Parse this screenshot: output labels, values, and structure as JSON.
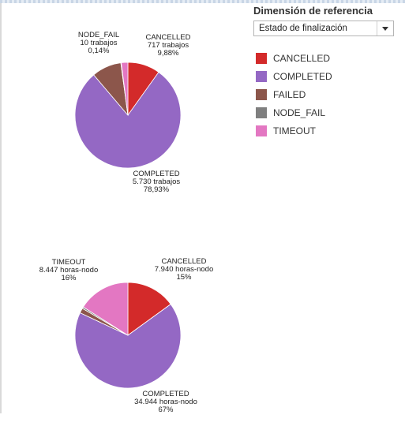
{
  "panel": {
    "title": "Dimensión de referencia",
    "select_value": "Estado de finalización"
  },
  "legend": [
    {
      "label": "CANCELLED",
      "color": "#d32a2a"
    },
    {
      "label": "COMPLETED",
      "color": "#9468c4"
    },
    {
      "label": "FAILED",
      "color": "#8c564b"
    },
    {
      "label": "NODE_FAIL",
      "color": "#7f7f7f"
    },
    {
      "label": "TIMEOUT",
      "color": "#e377c2"
    }
  ],
  "chart_data": [
    {
      "type": "pie",
      "slices": [
        {
          "name": "CANCELLED",
          "percent": 9.88,
          "color": "#d32a2a"
        },
        {
          "name": "COMPLETED",
          "percent": 78.93,
          "color": "#9468c4"
        },
        {
          "name": "FAILED",
          "percent": 9.05,
          "color": "#8c564b"
        },
        {
          "name": "NODE_FAIL",
          "percent": 0.14,
          "color": "#7f7f7f"
        },
        {
          "name": "TIMEOUT",
          "percent": 2.0,
          "color": "#e377c2"
        }
      ],
      "labels": [
        {
          "name": "NODE_FAIL",
          "value": "10 trabajos",
          "pct": "0,14%"
        },
        {
          "name": "CANCELLED",
          "value": "717 trabajos",
          "pct": "9,88%"
        },
        {
          "name": "COMPLETED",
          "value": "5.730 trabajos",
          "pct": "78,93%"
        }
      ]
    },
    {
      "type": "pie",
      "slices": [
        {
          "name": "CANCELLED",
          "percent": 15,
          "color": "#d32a2a"
        },
        {
          "name": "COMPLETED",
          "percent": 67,
          "color": "#9468c4"
        },
        {
          "name": "FAILED",
          "percent": 1.5,
          "color": "#8c564b"
        },
        {
          "name": "NODE_FAIL",
          "percent": 0.5,
          "color": "#7f7f7f"
        },
        {
          "name": "TIMEOUT",
          "percent": 16,
          "color": "#e377c2"
        }
      ],
      "labels": [
        {
          "name": "TIMEOUT",
          "value": "8.447 horas-nodo",
          "pct": "16%"
        },
        {
          "name": "CANCELLED",
          "value": "7.940 horas-nodo",
          "pct": "15%"
        },
        {
          "name": "COMPLETED",
          "value": "34.944 horas-nodo",
          "pct": "67%"
        }
      ]
    }
  ]
}
